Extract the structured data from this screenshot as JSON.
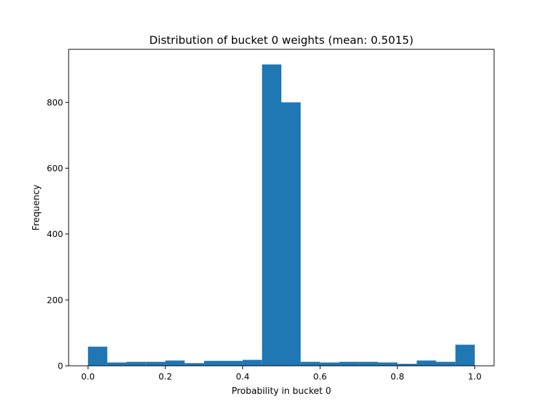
{
  "chart_data": {
    "type": "bar",
    "title": "Distribution of bucket 0 weights (mean: 0.5015)",
    "xlabel": "Probability in bucket 0",
    "ylabel": "Frequency",
    "xlim": [
      -0.05,
      1.05
    ],
    "ylim": [
      0,
      961
    ],
    "xticks": [
      0.0,
      0.2,
      0.4,
      0.6,
      0.8,
      1.0
    ],
    "xtick_labels": [
      "0.0",
      "0.2",
      "0.4",
      "0.6",
      "0.8",
      "1.0"
    ],
    "yticks": [
      0,
      200,
      400,
      600,
      800
    ],
    "ytick_labels": [
      "0",
      "200",
      "400",
      "600",
      "800"
    ],
    "bin_edges": [
      0.0,
      0.05,
      0.1,
      0.15,
      0.2,
      0.25,
      0.3,
      0.35,
      0.4,
      0.45,
      0.5,
      0.55,
      0.6,
      0.65,
      0.7,
      0.75,
      0.8,
      0.85,
      0.9,
      0.95,
      1.0
    ],
    "values": [
      58,
      10,
      12,
      12,
      16,
      8,
      15,
      15,
      18,
      915,
      800,
      12,
      10,
      12,
      12,
      10,
      6,
      16,
      12,
      64
    ],
    "bar_color": "#1f77b4",
    "grid": false,
    "legend": "none"
  }
}
